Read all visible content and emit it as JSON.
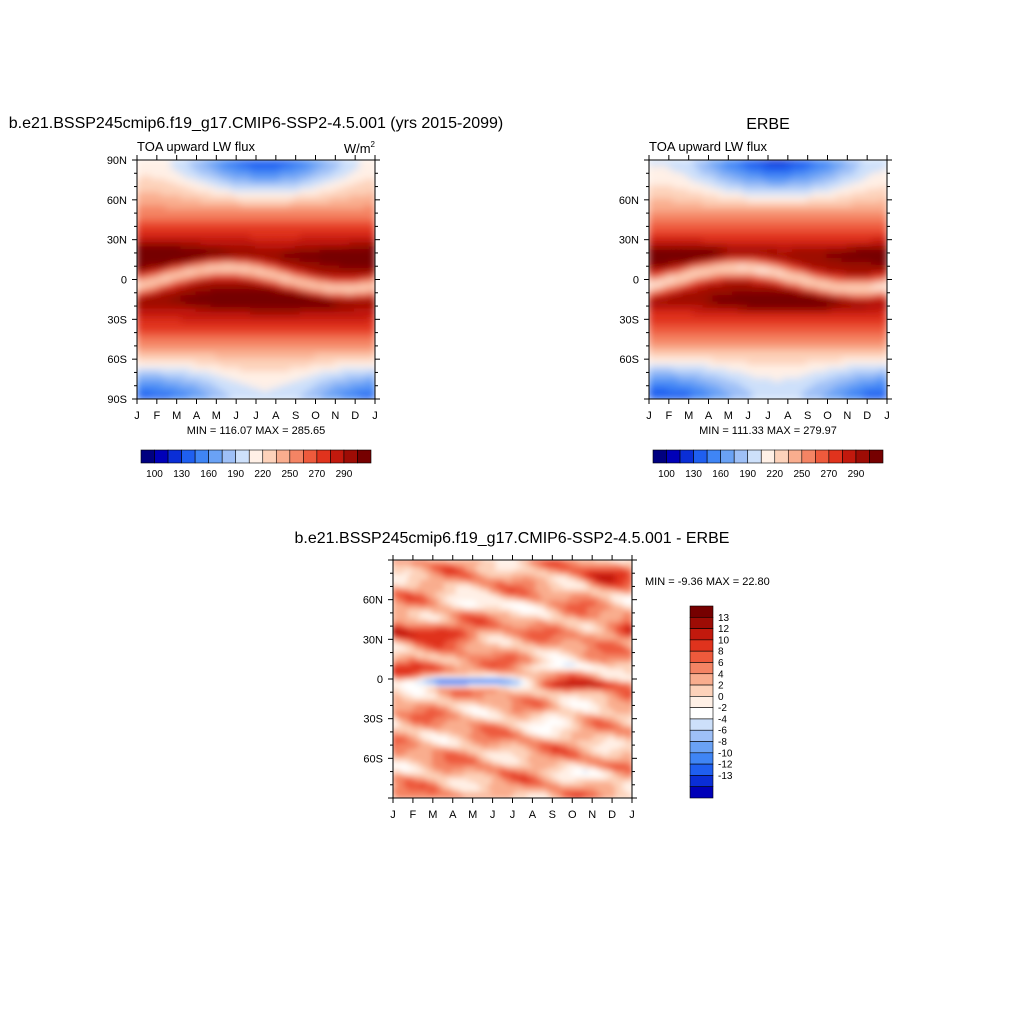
{
  "colors": {
    "levels": [
      "#000080",
      "#0000b8",
      "#0a2ed6",
      "#1f5ff0",
      "#3f85f5",
      "#6aa2f5",
      "#9ec0f7",
      "#cde0fa",
      "#fff0e6",
      "#fdd2ba",
      "#f9ad8e",
      "#f48464",
      "#ee5a3c",
      "#e0331d",
      "#c2190d",
      "#9e0c05",
      "#760000"
    ],
    "diff_levels": [
      "#000080",
      "#0000b8",
      "#0a2ed6",
      "#1f5ff0",
      "#3f85f5",
      "#6aa2f5",
      "#9ec0f7",
      "#cde0fa",
      "#ffffff",
      "#fff0e6",
      "#fdd2ba",
      "#f9ad8e",
      "#f48464",
      "#ee5a3c",
      "#e0331d",
      "#c2190d",
      "#9e0c05",
      "#760000"
    ]
  },
  "chart_data": [
    {
      "type": "heatmap",
      "title": "b.e21.BSSP245cmip6.f19_g17.CMIP6-SSP2-4.5.001 (yrs 2015-2099)",
      "left_label": "TOA upward LW flux",
      "unit_base": "W/m",
      "unit_exp": "2",
      "x_ticks": [
        "J",
        "F",
        "M",
        "A",
        "M",
        "J",
        "J",
        "A",
        "S",
        "O",
        "N",
        "D",
        "J"
      ],
      "y_ticks": [
        "90N",
        "60N",
        "30N",
        "0",
        "30S",
        "60S",
        "90S"
      ],
      "y_tick_lats": [
        90,
        60,
        30,
        0,
        -30,
        -60,
        -90
      ],
      "ylim": [
        -90,
        90
      ],
      "stats": "MIN = 116.07 MAX = 285.65",
      "colorbar_labels": [
        "100",
        "130",
        "160",
        "190",
        "220",
        "250",
        "270",
        "290"
      ]
    },
    {
      "type": "heatmap",
      "title": "ERBE",
      "left_label": "TOA upward LW flux",
      "x_ticks": [
        "J",
        "F",
        "M",
        "A",
        "M",
        "J",
        "J",
        "A",
        "S",
        "O",
        "N",
        "D",
        "J"
      ],
      "y_ticks": [
        "60N",
        "30N",
        "0",
        "30S",
        "60S"
      ],
      "y_tick_lats": [
        60,
        30,
        0,
        -30,
        -60
      ],
      "ylim": [
        -90,
        90
      ],
      "stats": "MIN = 111.33 MAX = 279.97",
      "colorbar_labels": [
        "100",
        "130",
        "160",
        "190",
        "220",
        "250",
        "270",
        "290"
      ]
    },
    {
      "type": "heatmap",
      "title": "b.e21.BSSP245cmip6.f19_g17.CMIP6-SSP2-4.5.001 - ERBE",
      "x_ticks": [
        "J",
        "F",
        "M",
        "A",
        "M",
        "J",
        "J",
        "A",
        "S",
        "O",
        "N",
        "D",
        "J"
      ],
      "y_ticks": [
        "60N",
        "30N",
        "0",
        "30S",
        "60S"
      ],
      "y_tick_lats": [
        60,
        30,
        0,
        -30,
        -60
      ],
      "ylim": [
        -90,
        90
      ],
      "stats": "MIN =  -9.36 MAX =  22.80",
      "colorbar_labels": [
        "13",
        "12",
        "10",
        "8",
        "6",
        "4",
        "2",
        "0",
        "-2",
        "-4",
        "-6",
        "-8",
        "-10",
        "-12",
        "-13"
      ]
    }
  ]
}
